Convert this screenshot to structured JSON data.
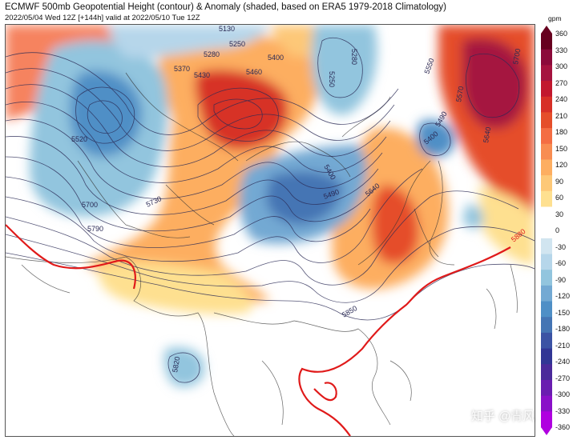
{
  "header": {
    "title": "ECMWF 500mb Geopotential Height (contour) & Anomaly (shaded, based on ERA5 1979-2018 Climatology)",
    "valid": "2022/05/04 Wed 12Z [+144h] valid at 2022/05/10 Tue 12Z"
  },
  "colorbar": {
    "unit": "gpm",
    "labels": [
      "360",
      "330",
      "300",
      "270",
      "240",
      "210",
      "180",
      "150",
      "120",
      "90",
      "60",
      "30",
      "0",
      "-30",
      "-60",
      "-90",
      "-120",
      "-150",
      "-180",
      "-210",
      "-240",
      "-270",
      "-300",
      "-330",
      "-360"
    ],
    "colors": [
      "#67001f",
      "#8b0a3a",
      "#a5133f",
      "#c2182e",
      "#d73027",
      "#e54e2a",
      "#f46d43",
      "#f88d52",
      "#fdae61",
      "#fdc878",
      "#fee090",
      "#ffffff",
      "#ffffff",
      "#d1e5f0",
      "#b6d6ea",
      "#92c5de",
      "#73a9d3",
      "#4f8fc6",
      "#4575b4",
      "#3b53a4",
      "#313695",
      "#4b2a9a",
      "#6a1db0",
      "#8a10c8",
      "#b000e0"
    ]
  },
  "contour_labels": [
    {
      "text": "5130"
    },
    {
      "text": "5250"
    },
    {
      "text": "5280"
    },
    {
      "text": "5370"
    },
    {
      "text": "5430"
    },
    {
      "text": "5460"
    },
    {
      "text": "5400"
    },
    {
      "text": "5250"
    },
    {
      "text": "5280"
    },
    {
      "text": "5520"
    },
    {
      "text": "5700"
    },
    {
      "text": "5730"
    },
    {
      "text": "5790"
    },
    {
      "text": "5400"
    },
    {
      "text": "5490"
    },
    {
      "text": "5640"
    },
    {
      "text": "5550"
    },
    {
      "text": "5570"
    },
    {
      "text": "5400"
    },
    {
      "text": "5490"
    },
    {
      "text": "5700"
    },
    {
      "text": "5640"
    },
    {
      "text": "5880"
    },
    {
      "text": "5850"
    },
    {
      "text": "5820"
    }
  ],
  "watermark": "知乎 @青风"
}
